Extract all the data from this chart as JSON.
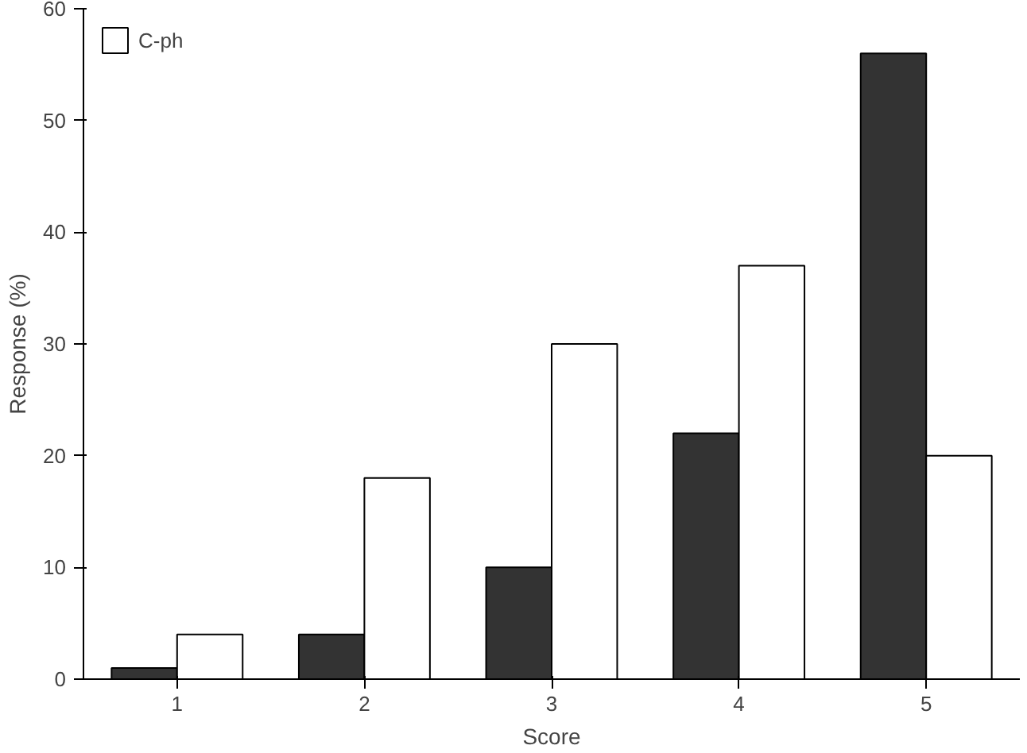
{
  "chart_data": {
    "type": "bar",
    "xlabel": "Score",
    "ylabel": "Response (%)",
    "categories": [
      "1",
      "2",
      "3",
      "4",
      "5"
    ],
    "series": [
      {
        "color": "#333333",
        "values": [
          1,
          4,
          10,
          22,
          56
        ]
      },
      {
        "name": "C-ph",
        "color": "#ffffff",
        "values": [
          4,
          18,
          30,
          37,
          20
        ]
      }
    ],
    "ylim": [
      0,
      60
    ],
    "yticks": [
      0,
      10,
      20,
      30,
      40,
      50,
      60
    ],
    "grid": false,
    "legend": "top left"
  }
}
